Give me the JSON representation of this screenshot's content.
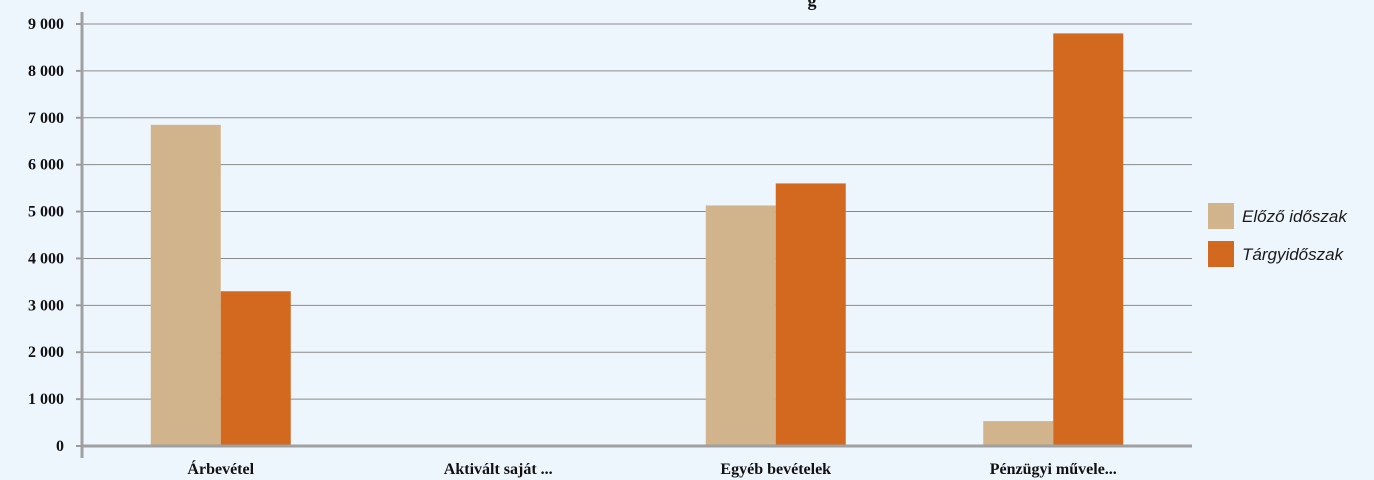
{
  "chart_data": {
    "type": "bar",
    "title": "g",
    "categories": [
      "Árbevétel",
      "Aktivált saját ...",
      "Egyéb bevételek",
      "Pénzügyi művele..."
    ],
    "series": [
      {
        "name": "Előző időszak",
        "color": "#d2b48c",
        "values": [
          6850,
          0,
          5130,
          530
        ]
      },
      {
        "name": "Tárgyidőszak",
        "color": "#d2691e",
        "values": [
          3300,
          0,
          5600,
          8800
        ]
      }
    ],
    "ylim": [
      0,
      9000
    ],
    "yticks": [
      0,
      1000,
      2000,
      3000,
      4000,
      5000,
      6000,
      7000,
      8000,
      9000
    ],
    "ytick_labels": [
      "0",
      "1 000",
      "2 000",
      "3 000",
      "4 000",
      "5 000",
      "6 000",
      "7 000",
      "8 000",
      "9 000"
    ],
    "grid": true,
    "legend_position": "right"
  }
}
